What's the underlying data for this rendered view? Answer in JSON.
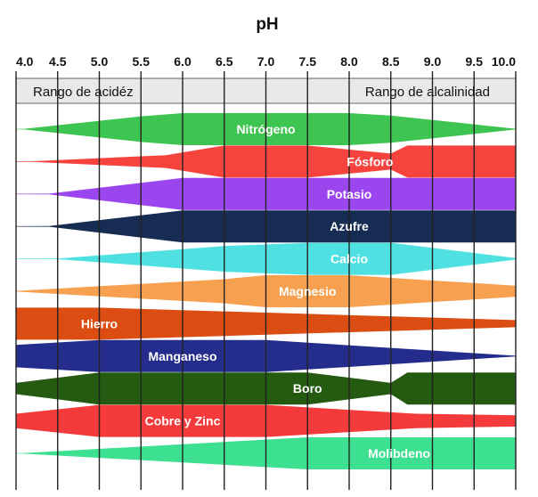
{
  "chart_data": {
    "type": "area",
    "title": "pH",
    "xlim": [
      4.0,
      10.0
    ],
    "ticks": [
      "4.0",
      "4.5",
      "5.0",
      "5.5",
      "6.0",
      "6.5",
      "7.0",
      "7.5",
      "8.0",
      "8.5",
      "9.0",
      "9.5",
      "10.0"
    ],
    "range_labels": {
      "acid": "Rango de acidéz",
      "alkaline": "Rango de alcalinidad"
    },
    "series": [
      {
        "name": "Nitrógeno",
        "color": "#3ec451",
        "profile": [
          [
            4.0,
            0
          ],
          [
            4.1,
            0.02
          ],
          [
            5.5,
            0.8
          ],
          [
            6.0,
            1
          ],
          [
            8.0,
            1
          ],
          [
            8.5,
            0.85
          ],
          [
            10.0,
            0.02
          ],
          [
            10.05,
            0
          ]
        ]
      },
      {
        "name": "Fósforo",
        "color": "#f7433e",
        "profile": [
          [
            4.0,
            0
          ],
          [
            4.2,
            0.02
          ],
          [
            5.8,
            0.4
          ],
          [
            6.5,
            1
          ],
          [
            7.5,
            1
          ],
          [
            8.5,
            0.5
          ],
          [
            8.7,
            1
          ],
          [
            10.0,
            1
          ]
        ]
      },
      {
        "name": "Potasio",
        "color": "#9b45ef",
        "profile": [
          [
            4.0,
            0
          ],
          [
            4.4,
            0.02
          ],
          [
            6.0,
            1
          ],
          [
            10.0,
            1
          ]
        ]
      },
      {
        "name": "Azufre",
        "color": "#162c52",
        "profile": [
          [
            4.0,
            0
          ],
          [
            4.4,
            0.02
          ],
          [
            6.0,
            1
          ],
          [
            10.0,
            1
          ]
        ]
      },
      {
        "name": "Calcio",
        "color": "#4fe1e1",
        "profile": [
          [
            4.0,
            0
          ],
          [
            4.5,
            0.02
          ],
          [
            6.5,
            0.8
          ],
          [
            7.5,
            1
          ],
          [
            8.5,
            1
          ],
          [
            10.0,
            0.05
          ]
        ]
      },
      {
        "name": "Magnesio",
        "color": "#f6a050",
        "profile": [
          [
            4.0,
            0.02
          ],
          [
            6.5,
            0.75
          ],
          [
            7.0,
            1
          ],
          [
            8.0,
            1
          ],
          [
            10.0,
            0.35
          ]
        ]
      },
      {
        "name": "Hierro",
        "color": "#dc4d14",
        "profile": [
          [
            4.0,
            1
          ],
          [
            5.0,
            1
          ],
          [
            10.0,
            0.22
          ]
        ]
      },
      {
        "name": "Manganeso",
        "color": "#242c8c",
        "profile": [
          [
            4.0,
            0.7
          ],
          [
            5.0,
            1
          ],
          [
            7.0,
            1
          ],
          [
            10.0,
            0.02
          ]
        ]
      },
      {
        "name": "Boro",
        "color": "#245b10",
        "profile": [
          [
            4.0,
            0.35
          ],
          [
            5.0,
            1
          ],
          [
            7.5,
            1
          ],
          [
            8.5,
            0.35
          ],
          [
            8.7,
            1
          ],
          [
            10.0,
            1
          ]
        ]
      },
      {
        "name": "Cobre y Zinc",
        "color": "#f43a3a",
        "profile": [
          [
            4.0,
            0.45
          ],
          [
            5.0,
            1
          ],
          [
            7.0,
            1
          ],
          [
            8.8,
            0.45
          ],
          [
            10.0,
            0.35
          ]
        ]
      },
      {
        "name": "Molibdeno",
        "color": "#3ce090",
        "profile": [
          [
            4.0,
            0
          ],
          [
            4.1,
            0.02
          ],
          [
            7.5,
            1
          ],
          [
            10.0,
            1
          ]
        ]
      }
    ],
    "grid": true,
    "legend": "none"
  }
}
